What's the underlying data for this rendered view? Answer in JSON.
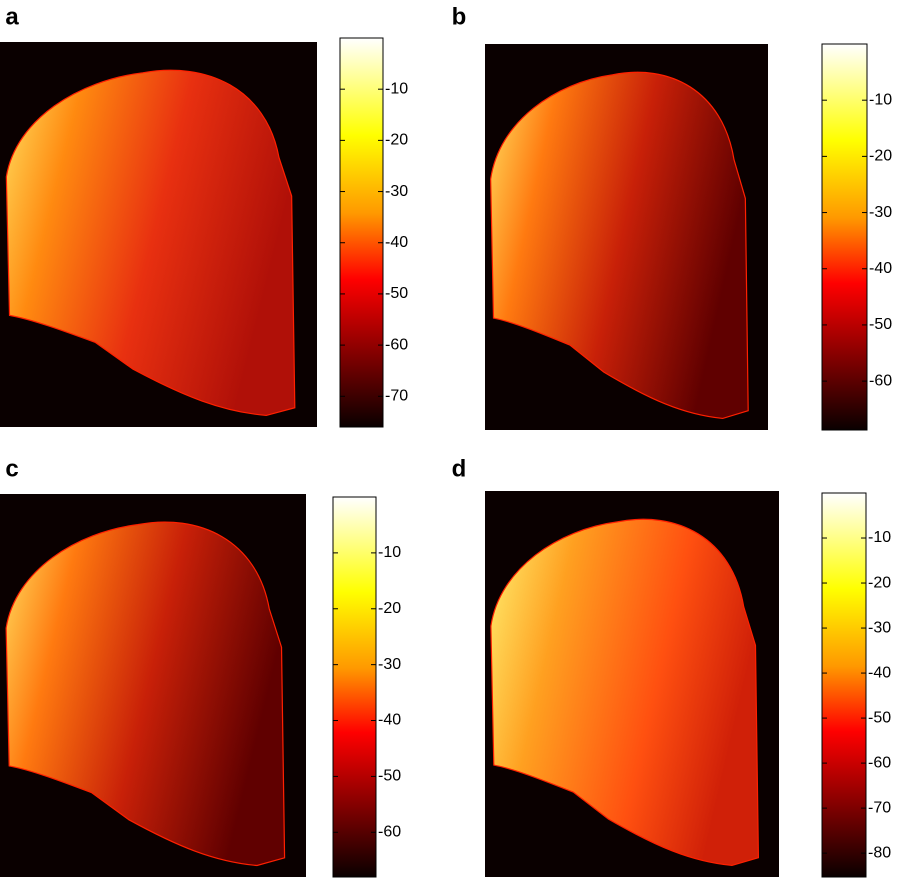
{
  "chart_data": [
    {
      "type": "heatmap",
      "label": "a",
      "clim": [
        -76,
        0
      ],
      "cticks": [
        -10,
        -20,
        -30,
        -40,
        -50,
        -60,
        -70
      ]
    },
    {
      "type": "heatmap",
      "label": "b",
      "clim": [
        -68.7,
        0
      ],
      "cticks": [
        -10,
        -20,
        -30,
        -40,
        -50,
        -60
      ]
    },
    {
      "type": "heatmap",
      "label": "c",
      "clim": [
        -68,
        0
      ],
      "cticks": [
        -10,
        -20,
        -30,
        -40,
        -50,
        -60
      ]
    },
    {
      "type": "heatmap",
      "label": "d",
      "clim": [
        -85.3,
        0
      ],
      "cticks": [
        -10,
        -20,
        -30,
        -40,
        -50,
        -60,
        -70,
        -80
      ]
    }
  ]
}
